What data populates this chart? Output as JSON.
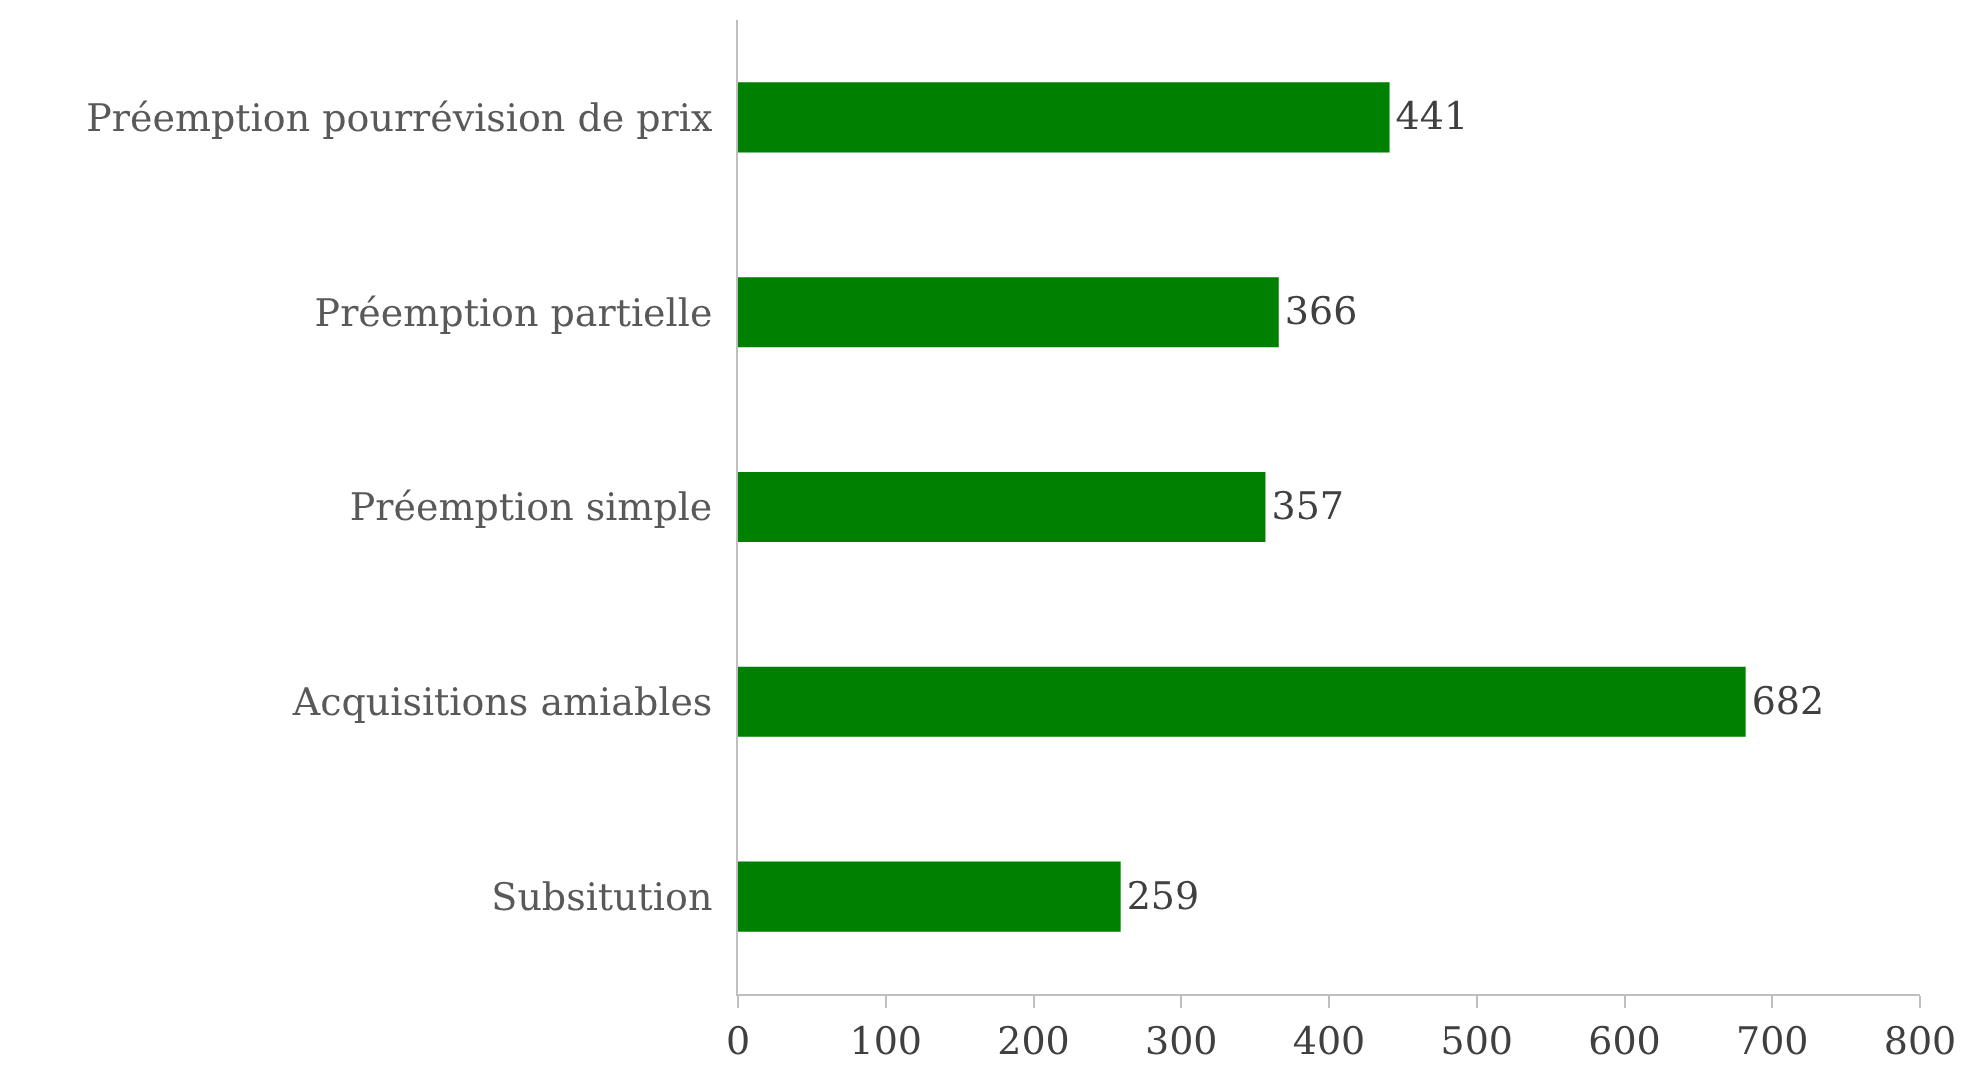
{
  "chart_data": {
    "type": "bar",
    "orientation": "horizontal",
    "categories": [
      "Préemption pourrévision de prix",
      "Préemption partielle",
      "Préemption simple",
      "Acquisitions amiables",
      "Subsitution"
    ],
    "values": [
      441,
      366,
      357,
      682,
      259
    ],
    "color": "#008000",
    "xlim": [
      0,
      800
    ],
    "xticks": [
      0,
      100,
      200,
      300,
      400,
      500,
      600,
      700,
      800
    ],
    "grid": false,
    "legend": false,
    "data_labels": true
  }
}
